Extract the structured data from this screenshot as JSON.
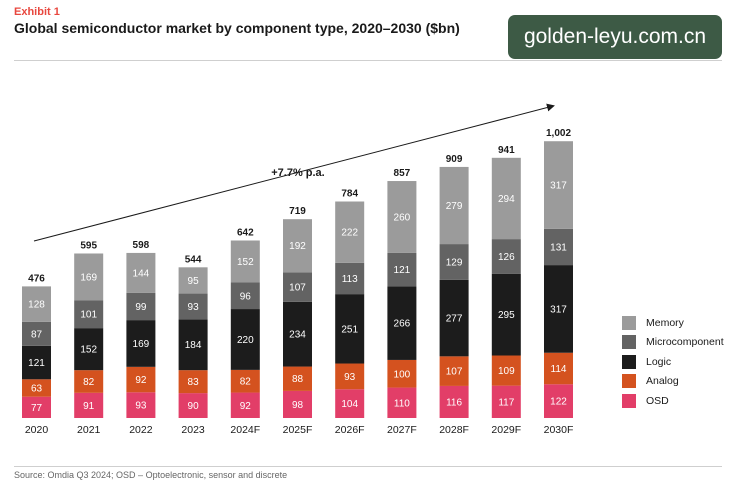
{
  "header": {
    "exhibit": "Exhibit 1",
    "title": "Global semiconductor market by component type, 2020–2030 ($bn)"
  },
  "watermark": "golden-leyu.com.cn",
  "source": "Source: Omdia Q3 2024; OSD – Optoelectronic, sensor and discrete",
  "colors": {
    "Memory": "#9b9b9b",
    "Microcomponent": "#636363",
    "Logic": "#1c1c1c",
    "Analog": "#d4521f",
    "OSD": "#e23e68"
  },
  "chart_data": {
    "type": "bar",
    "stacked": true,
    "categories": [
      "2020",
      "2021",
      "2022",
      "2023",
      "2024F",
      "2025F",
      "2026F",
      "2027F",
      "2028F",
      "2029F",
      "2030F"
    ],
    "series": [
      {
        "name": "OSD",
        "values": [
          77,
          91,
          93,
          90,
          92,
          98,
          104,
          110,
          116,
          117,
          122
        ]
      },
      {
        "name": "Analog",
        "values": [
          63,
          82,
          92,
          83,
          82,
          88,
          93,
          100,
          107,
          109,
          114
        ]
      },
      {
        "name": "Logic",
        "values": [
          121,
          152,
          169,
          184,
          220,
          234,
          251,
          266,
          277,
          295,
          317
        ]
      },
      {
        "name": "Microcomponent",
        "values": [
          87,
          101,
          99,
          93,
          96,
          107,
          113,
          121,
          129,
          126,
          131
        ]
      },
      {
        "name": "Memory",
        "values": [
          128,
          169,
          144,
          95,
          152,
          192,
          222,
          260,
          279,
          294,
          317
        ]
      }
    ],
    "totals": [
      "476",
      "595",
      "598",
      "544",
      "642",
      "719",
      "784",
      "857",
      "909",
      "941",
      "1,002"
    ],
    "annotation": "+7.7% p.a.",
    "legend_position": "right",
    "grid": false
  }
}
